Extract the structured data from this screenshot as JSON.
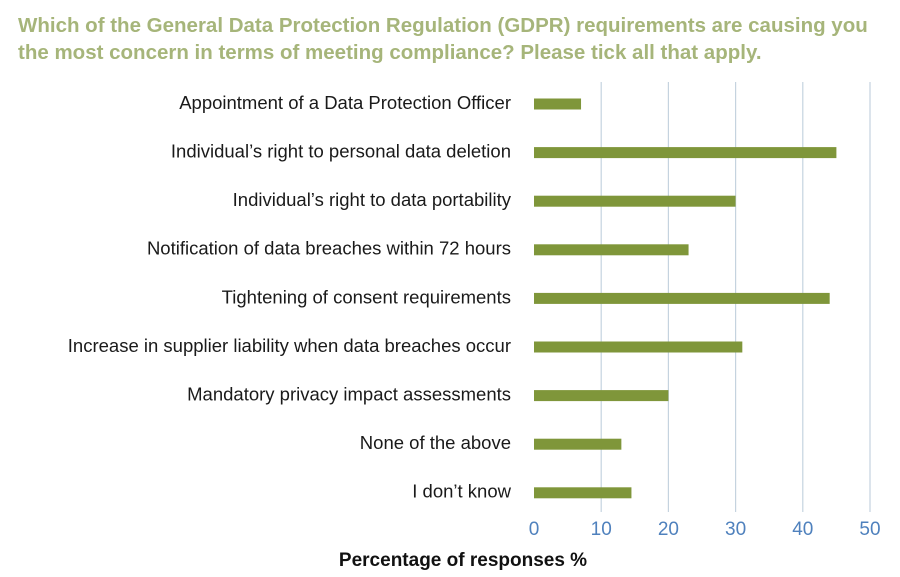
{
  "chart_data": {
    "type": "bar",
    "orientation": "horizontal",
    "title": "Which of the General Data Protection Regulation (GDPR) requirements are causing you the most concern in terms of meeting compliance? Please tick all that apply.",
    "xlabel": "Percentage of responses %",
    "ylabel": "",
    "xlim": [
      0,
      50
    ],
    "ticks": [
      "0",
      "10",
      "20",
      "30",
      "40",
      "50"
    ],
    "grid": "vertical",
    "categories": [
      "Appointment of a Data Protection Officer",
      "Individual’s right to personal data deletion",
      "Individual’s right to data portability",
      "Notification of data breaches within 72 hours",
      "Tightening of consent requirements",
      "Increase in supplier liability when data breaches occur",
      "Mandatory privacy impact assessments",
      "None of the above",
      "I don’t know"
    ],
    "values": [
      7,
      45,
      30,
      23,
      44,
      31,
      20,
      13,
      14.5
    ],
    "colors": {
      "bar": "#7f963a",
      "grid": "#c5d3df",
      "tick": "#4f81bd",
      "title": "#a6b57a"
    }
  }
}
